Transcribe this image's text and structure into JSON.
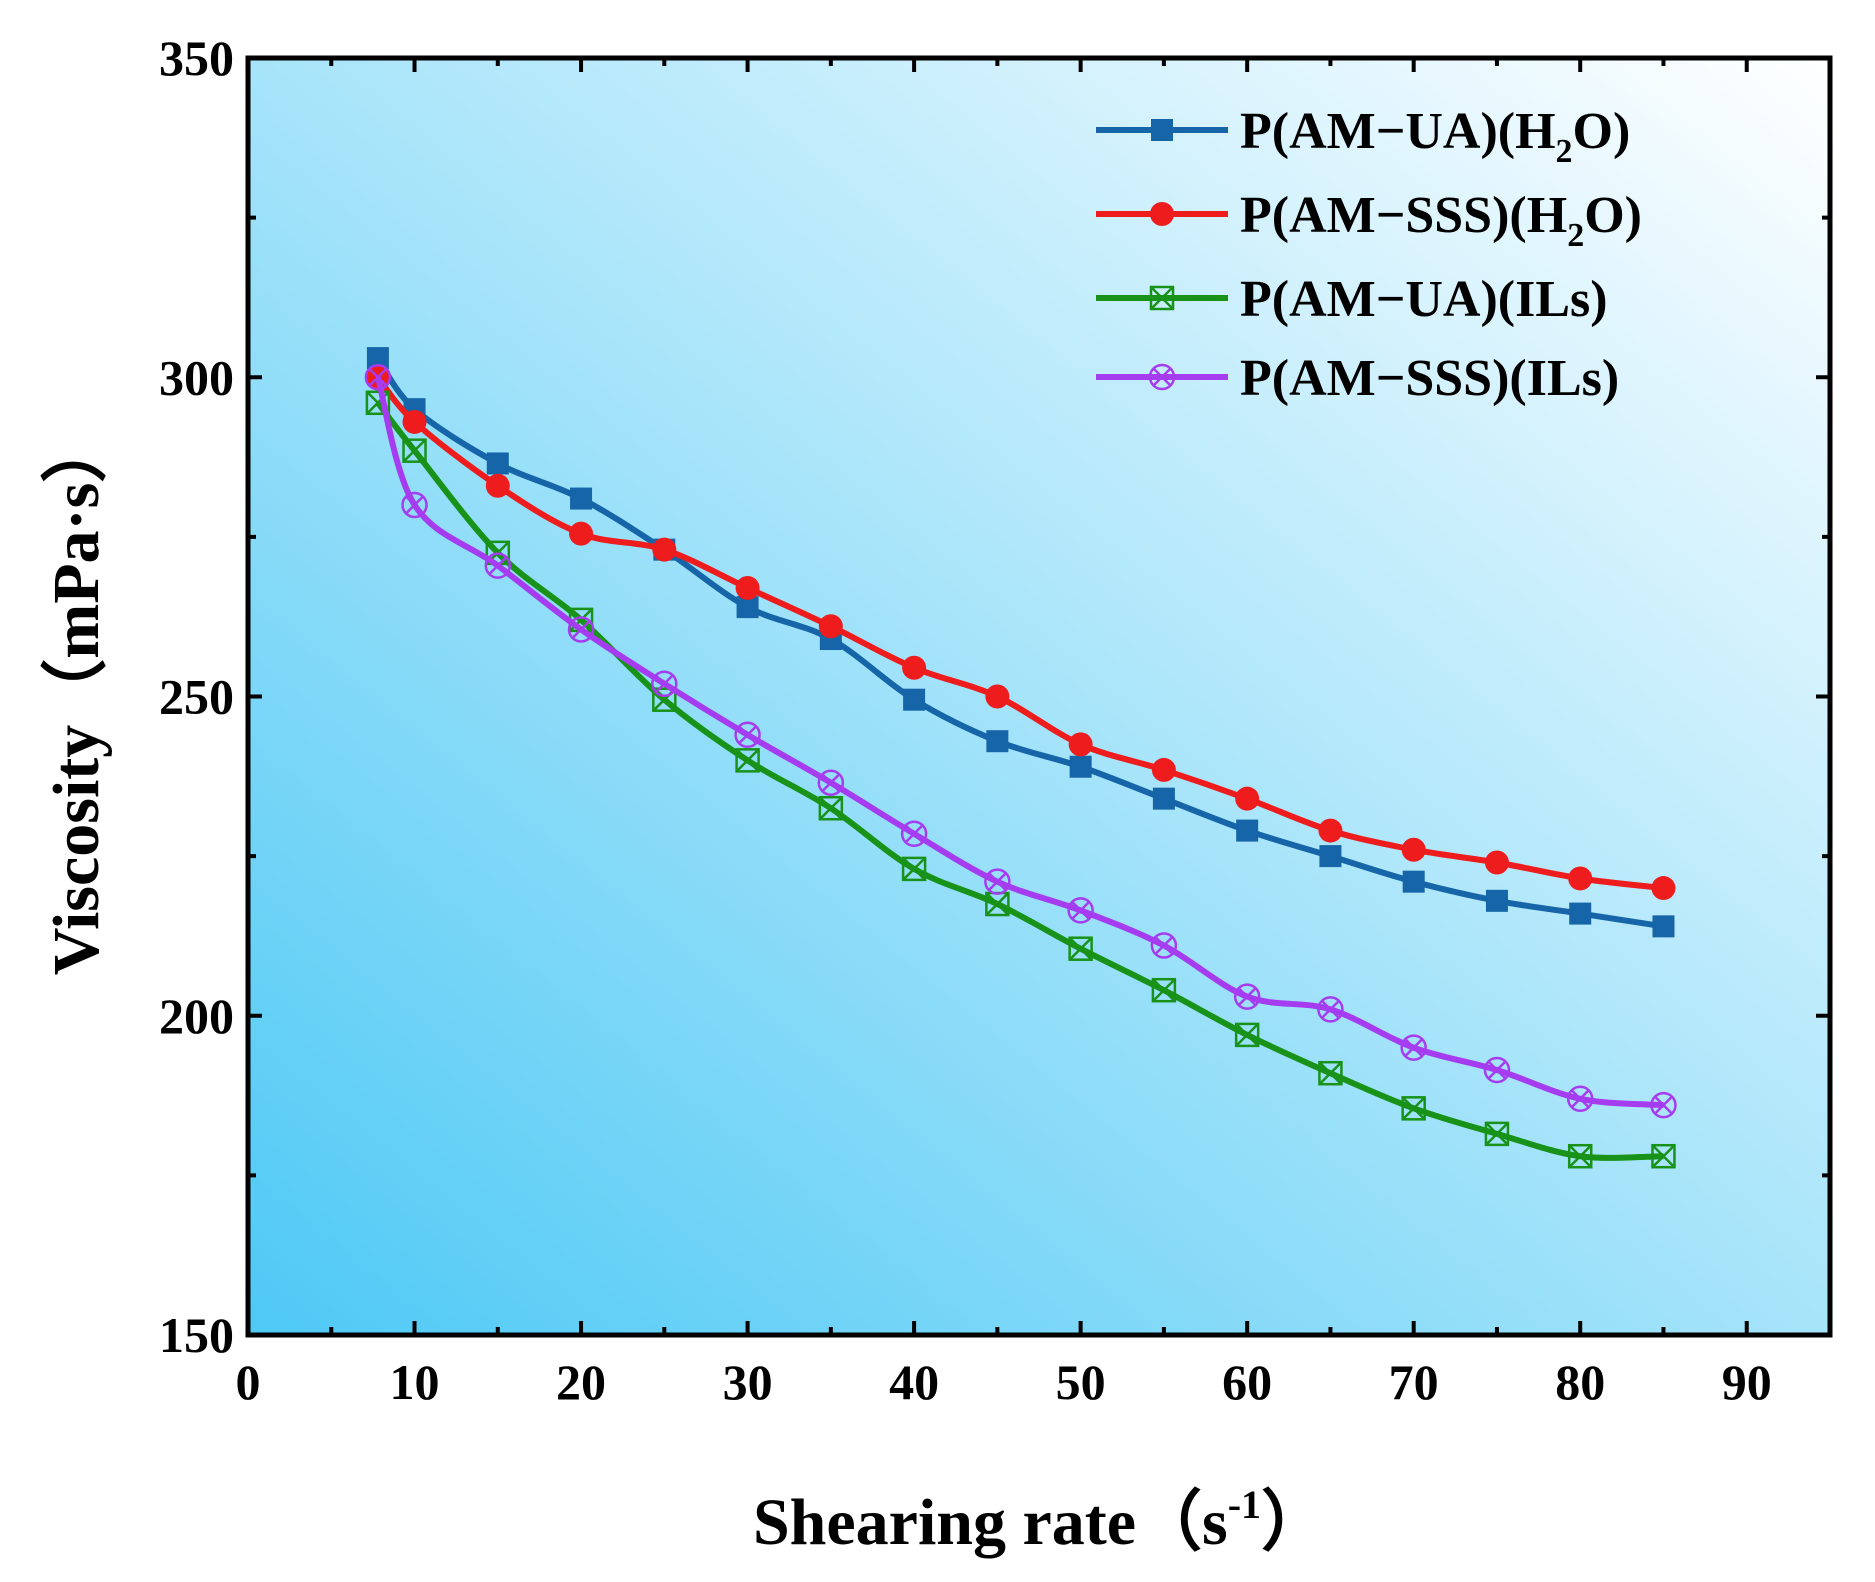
{
  "chart_data": {
    "type": "line",
    "title": "",
    "xlabel": "Shearing rate（s",
    "xlabel_superscript": "-1",
    "xlabel_close": "）",
    "ylabel": "Viscosity（mPa·s）",
    "xlim": [
      0,
      95
    ],
    "ylim": [
      150,
      350
    ],
    "xticks": [
      0,
      10,
      20,
      30,
      40,
      50,
      60,
      70,
      80,
      90
    ],
    "yticks": [
      150,
      200,
      250,
      300,
      350
    ],
    "xtick_labels": [
      "0",
      "10",
      "20",
      "30",
      "40",
      "50",
      "60",
      "70",
      "80",
      "90"
    ],
    "ytick_labels": [
      "150",
      "200",
      "250",
      "300",
      "350"
    ],
    "grid": false,
    "legend_position": "top-right",
    "background": {
      "gradient_from": "#4ec9f5",
      "gradient_to": "#ffffff"
    },
    "series": [
      {
        "name": "P(AM−UA)(H2O)",
        "label_main": "P(AM−UA)(H",
        "label_sub": "2",
        "label_end": "O)",
        "color": "#1565a8",
        "marker": "square-filled",
        "x": [
          7.8,
          10,
          15,
          20,
          25,
          30,
          35,
          40,
          45,
          50,
          55,
          60,
          65,
          70,
          75,
          80,
          85
        ],
        "values": [
          303,
          295,
          286.5,
          281,
          273,
          264,
          259,
          249.5,
          243,
          239,
          234,
          229,
          225,
          221,
          218,
          216,
          214
        ]
      },
      {
        "name": "P(AM−SSS)(H2O)",
        "label_main": "P(AM−SSS)(H",
        "label_sub": "2",
        "label_end": "O)",
        "color": "#ee1c1c",
        "marker": "circle-filled",
        "x": [
          7.8,
          10,
          15,
          20,
          25,
          30,
          35,
          40,
          45,
          50,
          55,
          60,
          65,
          70,
          75,
          80,
          85
        ],
        "values": [
          300,
          293,
          283,
          275.5,
          273,
          267,
          261,
          254.5,
          250,
          242.5,
          238.5,
          234,
          229,
          226,
          224,
          221.5,
          220
        ]
      },
      {
        "name": "P(AM−UA)(ILs)",
        "label_main": "P(AM−UA)(ILs)",
        "label_sub": "",
        "label_end": "",
        "color": "#189218",
        "marker": "square-cross",
        "x": [
          7.8,
          10,
          15,
          20,
          25,
          30,
          35,
          40,
          45,
          50,
          55,
          60,
          65,
          70,
          75,
          80,
          85
        ],
        "values": [
          296,
          288.5,
          272.5,
          262,
          249.5,
          240,
          232.5,
          223,
          217.5,
          210.5,
          204,
          197,
          191,
          185.5,
          181.5,
          178,
          178
        ]
      },
      {
        "name": "P(AM−SSS)(ILs)",
        "label_main": "P(AM−SSS)(ILs)",
        "label_sub": "",
        "label_end": "",
        "color": "#a63cf0",
        "marker": "circle-cross",
        "x": [
          7.8,
          10,
          15,
          20,
          25,
          30,
          35,
          40,
          45,
          50,
          55,
          60,
          65,
          70,
          75,
          80,
          85
        ],
        "values": [
          300,
          280,
          270.5,
          260.5,
          252,
          244,
          236.5,
          228.5,
          221,
          216.5,
          211,
          203,
          201,
          195,
          191.5,
          187,
          186
        ]
      }
    ]
  }
}
